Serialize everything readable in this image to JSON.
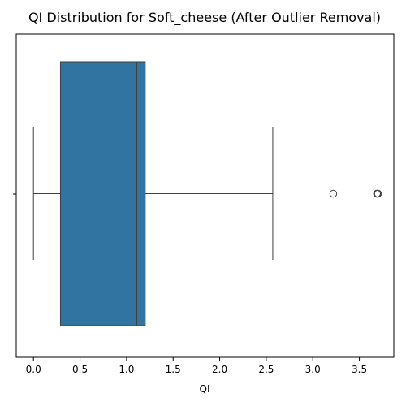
{
  "chart_data": {
    "type": "box",
    "title": "QI Distribution for Soft_cheese (After Outlier Removal)",
    "xlabel": "QI",
    "ylabel": "",
    "orientation": "horizontal",
    "xlim": [
      -0.185,
      3.87
    ],
    "xticks": [
      0.0,
      0.5,
      1.0,
      1.5,
      2.0,
      2.5,
      3.0,
      3.5
    ],
    "xtick_labels": [
      "0.0",
      "0.5",
      "1.0",
      "1.5",
      "2.0",
      "2.5",
      "3.0",
      "3.5"
    ],
    "box": {
      "whisker_low": 0.0,
      "q1": 0.29,
      "median": 1.11,
      "q3": 1.2,
      "whisker_high": 2.57
    },
    "outliers": [
      3.22,
      3.69,
      3.69,
      3.7
    ],
    "grid": false,
    "color": "#3274a1",
    "edge_color": "#3f3f3f"
  }
}
